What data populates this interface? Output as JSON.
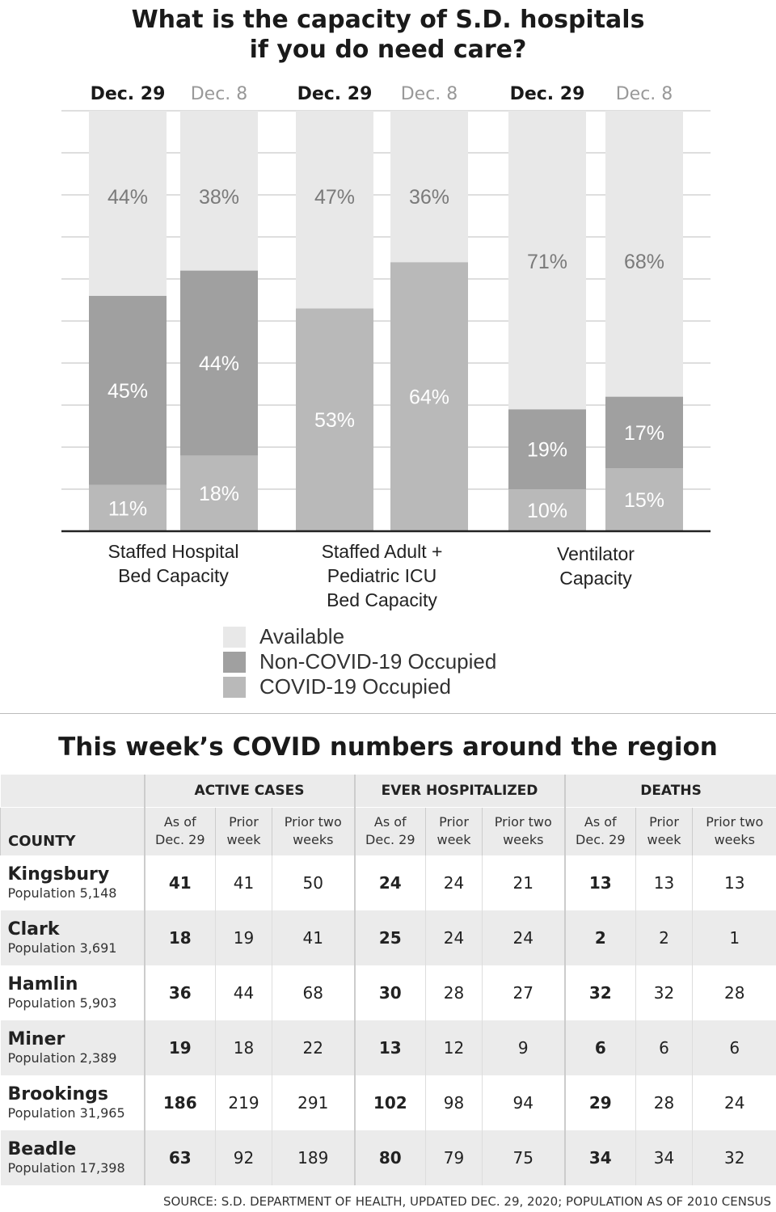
{
  "chart_data": {
    "type": "bar",
    "stacked": true,
    "title": "What is the capacity of S.D. hospitals if you do need care?",
    "title_lines": [
      "What is the capacity of S.D. hospitals",
      "if you do need care?"
    ],
    "ylim": [
      0,
      100
    ],
    "grid": true,
    "legend_position": "bottom-center",
    "groups": [
      {
        "label": [
          "Staffed Hospital",
          "Bed Capacity"
        ],
        "bars": [
          {
            "date": "Dec. 29",
            "bold": true,
            "covid": 11,
            "noncovid": 45,
            "available": 44
          },
          {
            "date": "Dec. 8",
            "bold": false,
            "covid": 18,
            "noncovid": 44,
            "available": 38
          }
        ]
      },
      {
        "label": [
          "Staffed Adult +",
          "Pediatric ICU",
          "Bed Capacity"
        ],
        "bars": [
          {
            "date": "Dec. 29",
            "bold": true,
            "covid": 53,
            "noncovid": 0,
            "available": 47
          },
          {
            "date": "Dec. 8",
            "bold": false,
            "covid": 64,
            "noncovid": 0,
            "available": 36
          }
        ]
      },
      {
        "label": [
          "Ventilator",
          "Capacity"
        ],
        "bars": [
          {
            "date": "Dec. 29",
            "bold": true,
            "covid": 10,
            "noncovid": 19,
            "available": 71
          },
          {
            "date": "Dec. 8",
            "bold": false,
            "covid": 15,
            "noncovid": 17,
            "available": 68
          }
        ]
      }
    ],
    "series": [
      {
        "key": "available",
        "name": "Available",
        "color": "#e8e8e8"
      },
      {
        "key": "noncovid",
        "name": "Non-COVID-19 Occupied",
        "color": "#a0a0a0"
      },
      {
        "key": "covid",
        "name": "COVID-19 Occupied",
        "color": "#b9b9b9"
      }
    ]
  },
  "table": {
    "title": "This week’s COVID numbers around the region",
    "county_header": "COUNTY",
    "groups": [
      "ACTIVE CASES",
      "EVER HOSPITALIZED",
      "DEATHS"
    ],
    "subheaders": [
      [
        "As of",
        "Dec. 29"
      ],
      [
        "Prior",
        "week"
      ],
      [
        "Prior two",
        "weeks"
      ]
    ],
    "rows": [
      {
        "county": "Kingsbury",
        "population": "Population 5,148",
        "values": [
          41,
          41,
          50,
          24,
          24,
          21,
          13,
          13,
          13
        ]
      },
      {
        "county": "Clark",
        "population": "Population 3,691",
        "values": [
          18,
          19,
          41,
          25,
          24,
          24,
          2,
          2,
          1
        ]
      },
      {
        "county": "Hamlin",
        "population": "Population 5,903",
        "values": [
          36,
          44,
          68,
          30,
          28,
          27,
          32,
          32,
          28
        ]
      },
      {
        "county": "Miner",
        "population": "Population 2,389",
        "values": [
          19,
          18,
          22,
          13,
          12,
          9,
          6,
          6,
          6
        ]
      },
      {
        "county": "Brookings",
        "population": "Population 31,965",
        "values": [
          186,
          219,
          291,
          102,
          98,
          94,
          29,
          28,
          24
        ]
      },
      {
        "county": "Beadle",
        "population": "Population 17,398",
        "values": [
          63,
          92,
          189,
          80,
          79,
          75,
          34,
          34,
          32
        ]
      }
    ],
    "source": "SOURCE: S.D. DEPARTMENT OF HEALTH, UPDATED DEC. 29, 2020; POPULATION AS OF 2010 CENSUS"
  }
}
